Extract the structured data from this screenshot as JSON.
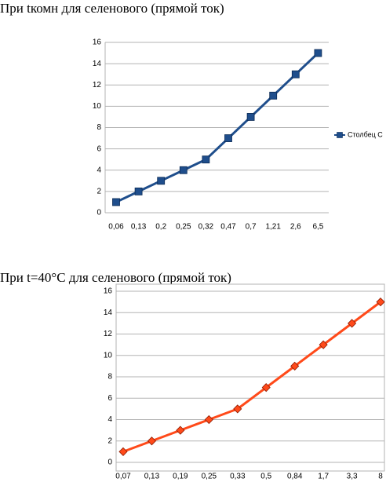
{
  "chart_data": [
    {
      "type": "line",
      "title": "При tкомн для селенового (прямой ток)",
      "categories": [
        "0,06",
        "0,13",
        "0,2",
        "0,25",
        "0,32",
        "0,47",
        "0,7",
        "1,21",
        "2,6",
        "6,5"
      ],
      "series": [
        {
          "name": "Столбец C",
          "color": "#1f4e8c",
          "values": [
            1,
            2,
            3,
            4,
            5,
            7,
            9,
            11,
            13,
            15
          ]
        }
      ],
      "marker": "square",
      "ylim": [
        0,
        16
      ],
      "yticks": [
        0,
        2,
        4,
        6,
        8,
        10,
        12,
        14,
        16
      ],
      "grid": true,
      "legend": "right"
    },
    {
      "type": "line",
      "title": "При t=40°C для селенового (прямой ток)",
      "categories": [
        "0,07",
        "0,13",
        "0,19",
        "0,25",
        "0,33",
        "0,5",
        "0,84",
        "1,7",
        "3,3",
        "8"
      ],
      "values": [
        1,
        2,
        3,
        4,
        5,
        7,
        9,
        11,
        13,
        15
      ],
      "color": "#ff4a1a",
      "marker": "diamond",
      "ylim": [
        0,
        16
      ],
      "yticks": [
        0,
        2,
        4,
        6,
        8,
        10,
        12,
        14,
        16
      ],
      "grid": true
    }
  ]
}
